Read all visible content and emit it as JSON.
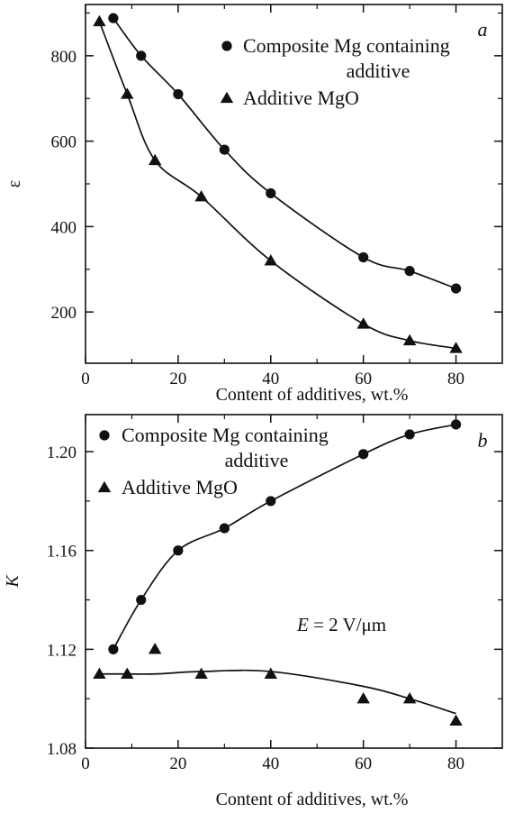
{
  "chart_data": [
    {
      "type": "scatter",
      "panel_label": "a",
      "xlabel": "Content of additives, wt.%",
      "ylabel": "ε",
      "xlim": [
        0,
        90
      ],
      "ylim": [
        80,
        920
      ],
      "xticks": [
        0,
        20,
        40,
        60,
        80
      ],
      "yticks": [
        200,
        400,
        600,
        800
      ],
      "legend": {
        "placement": "top-right",
        "entries": [
          {
            "marker": "circle",
            "text_lines": [
              "Composite Mg containing",
              "additive"
            ]
          },
          {
            "marker": "triangle",
            "text_lines": [
              "Additive MgO"
            ]
          }
        ]
      },
      "series": [
        {
          "name": "Composite Mg containing additive",
          "marker": "circle",
          "color": "#111111",
          "x": [
            6,
            12,
            20,
            30,
            40,
            60,
            70,
            80
          ],
          "y": [
            888,
            800,
            710,
            580,
            478,
            328,
            296,
            255
          ],
          "fit_curve": true
        },
        {
          "name": "Additive MgO",
          "marker": "triangle",
          "color": "#111111",
          "x": [
            3,
            9,
            15,
            25,
            40,
            60,
            70,
            80
          ],
          "y": [
            880,
            710,
            555,
            470,
            320,
            172,
            133,
            115
          ],
          "fit_curve": true
        }
      ],
      "grid": false
    },
    {
      "type": "scatter",
      "panel_label": "b",
      "xlabel": "Content of additives, wt.%",
      "ylabel": "K",
      "xlim": [
        0,
        90
      ],
      "ylim": [
        1.08,
        1.215
      ],
      "xticks": [
        0,
        20,
        40,
        60,
        80
      ],
      "yticks": [
        1.08,
        1.12,
        1.16,
        1.2
      ],
      "ytick_labels": [
        "1.08",
        "1.12",
        "1.16",
        "1.20"
      ],
      "annotation": {
        "var": "E",
        "text": " = 2 V/μm"
      },
      "legend": {
        "placement": "top",
        "entries": [
          {
            "marker": "circle",
            "text_lines": [
              "Composite Mg containing",
              "additive"
            ]
          },
          {
            "marker": "triangle",
            "text_lines": [
              "Additive MgO"
            ]
          }
        ]
      },
      "series": [
        {
          "name": "Composite Mg containing additive",
          "marker": "circle",
          "color": "#111111",
          "x": [
            6,
            12,
            20,
            30,
            40,
            60,
            70,
            80
          ],
          "y": [
            1.12,
            1.14,
            1.16,
            1.169,
            1.18,
            1.199,
            1.207,
            1.211
          ],
          "fit_curve": true
        },
        {
          "name": "Additive MgO",
          "marker": "triangle",
          "color": "#111111",
          "x": [
            3,
            9,
            15,
            25,
            40,
            60,
            70,
            80
          ],
          "y": [
            1.11,
            1.11,
            1.12,
            1.11,
            1.11,
            1.1,
            1.1,
            1.091
          ],
          "fit_curve": true,
          "fit_y": [
            1.11,
            1.11,
            1.11,
            1.111,
            1.111,
            1.105,
            1.1,
            1.094
          ],
          "fit_x": [
            3,
            9,
            15,
            25,
            40,
            60,
            70,
            80
          ]
        }
      ],
      "grid": false
    }
  ]
}
